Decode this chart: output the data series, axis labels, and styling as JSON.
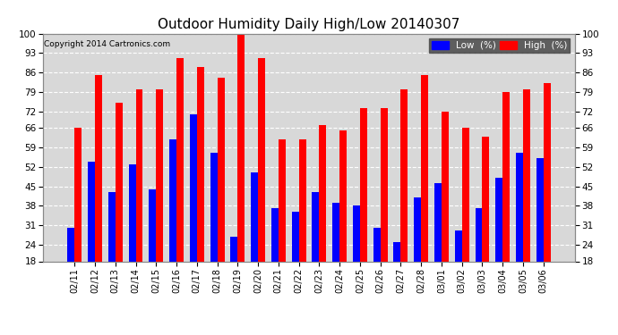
{
  "title": "Outdoor Humidity Daily High/Low 20140307",
  "copyright": "Copyright 2014 Cartronics.com",
  "categories": [
    "02/11",
    "02/12",
    "02/13",
    "02/14",
    "02/15",
    "02/16",
    "02/17",
    "02/18",
    "02/19",
    "02/20",
    "02/21",
    "02/22",
    "02/23",
    "02/24",
    "02/25",
    "02/26",
    "02/27",
    "02/28",
    "03/01",
    "03/02",
    "03/03",
    "03/04",
    "03/05",
    "03/06"
  ],
  "high": [
    66,
    85,
    75,
    80,
    80,
    91,
    88,
    84,
    100,
    91,
    62,
    62,
    67,
    65,
    73,
    73,
    80,
    85,
    72,
    66,
    63,
    79,
    80,
    82
  ],
  "low": [
    30,
    54,
    43,
    53,
    44,
    62,
    71,
    57,
    27,
    50,
    37,
    36,
    43,
    39,
    38,
    30,
    25,
    41,
    46,
    29,
    37,
    48,
    57,
    55
  ],
  "high_color": "#ff0000",
  "low_color": "#0000ff",
  "bg_color": "#ffffff",
  "plot_bg": "#d8d8d8",
  "grid_color": "#ffffff",
  "ylim_min": 18,
  "ylim_max": 100,
  "yticks": [
    18,
    24,
    31,
    38,
    45,
    52,
    59,
    66,
    72,
    79,
    86,
    93,
    100
  ],
  "bar_width": 0.35,
  "title_fontsize": 11,
  "legend_low_label": "Low  (%)",
  "legend_high_label": "High  (%)"
}
